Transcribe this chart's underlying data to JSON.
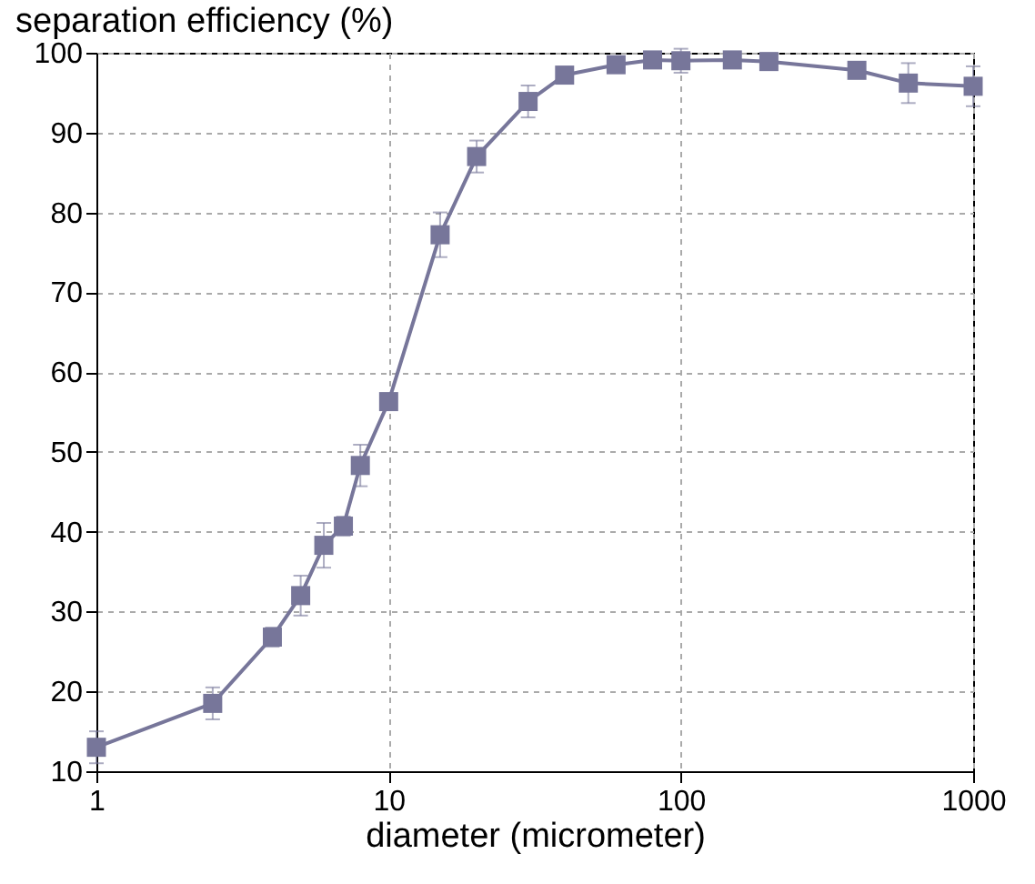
{
  "chart_data": {
    "type": "line",
    "xlabel": "diameter (micrometer)",
    "ylabel": "separation efficiency (%)",
    "x": [
      1,
      2.5,
      4,
      5,
      6,
      7,
      8,
      10,
      15,
      20,
      30,
      40,
      60,
      80,
      100,
      150,
      200,
      400,
      600,
      1000
    ],
    "series": [
      {
        "color": "#77769a",
        "values": [
          13,
          18.5,
          26.8,
          32,
          38.3,
          40.7,
          48.3,
          56.3,
          77.2,
          87,
          93.9,
          97.2,
          98.5,
          99.1,
          99,
          99.1,
          98.9,
          97.8,
          96.2,
          95.8
        ],
        "errors": [
          2,
          2,
          1.2,
          2.5,
          2.8,
          1.2,
          2.6,
          1,
          2.8,
          2,
          2,
          1,
          1,
          1,
          1.5,
          1,
          1,
          1,
          2.5,
          2.5
        ]
      }
    ],
    "log": "x",
    "xlim": [
      1,
      1000
    ],
    "xticks": [
      1,
      10,
      100,
      1000
    ],
    "ylim": [
      10,
      100
    ],
    "yticks": [
      10,
      20,
      30,
      40,
      50,
      60,
      70,
      80,
      90,
      100
    ],
    "grid": true,
    "marker": "square",
    "line_style": "solid"
  }
}
